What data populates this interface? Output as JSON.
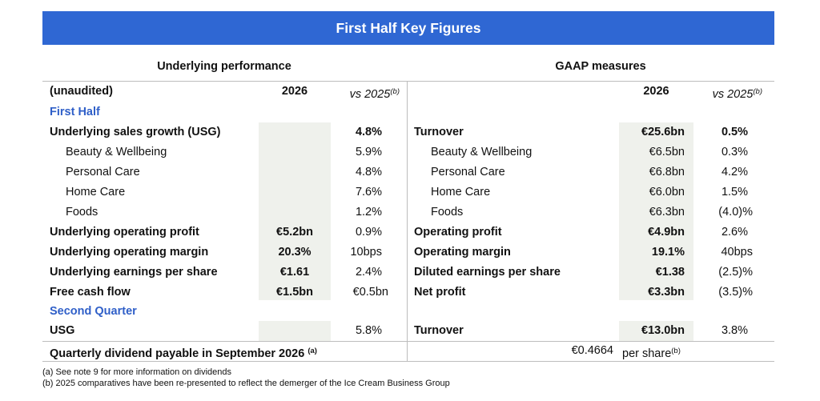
{
  "banner": "First Half Key Figures",
  "underlying": {
    "title": "Underlying performance",
    "col_label": "(unaudited)",
    "col_year": "2026",
    "col_vs": "vs 2025",
    "col_vs_sup": "(b)",
    "first_half": "First Half",
    "second_quarter": "Second Quarter",
    "rows": [
      {
        "label": "Underlying sales growth (USG)",
        "value": "",
        "change": "4.8%"
      },
      {
        "label": "Beauty & Wellbeing",
        "value": "",
        "change": "5.9%"
      },
      {
        "label": "Personal Care",
        "value": "",
        "change": "4.8%"
      },
      {
        "label": "Home Care",
        "value": "",
        "change": "7.6%"
      },
      {
        "label": "Foods",
        "value": "",
        "change": "1.2%"
      },
      {
        "label": "Underlying operating profit",
        "value": "€5.2bn",
        "change": "0.9%"
      },
      {
        "label": "Underlying operating margin",
        "value": "20.3%",
        "change": "10bps"
      },
      {
        "label": "Underlying earnings per share",
        "value": "€1.61",
        "change": "2.4%"
      },
      {
        "label": "Free cash flow",
        "value": "€1.5bn",
        "change": "€0.5bn"
      }
    ],
    "q2_row": {
      "label": "USG",
      "value": "",
      "change": "5.8%"
    }
  },
  "gaap": {
    "title": "GAAP measures",
    "col_year": "2026",
    "col_vs": "vs 2025",
    "col_vs_sup": "(b)",
    "rows": [
      {
        "label": "Turnover",
        "value": "€25.6bn",
        "change": "0.5%"
      },
      {
        "label": "Beauty & Wellbeing",
        "value": "€6.5bn",
        "change": "0.3%"
      },
      {
        "label": "Personal Care",
        "value": "€6.8bn",
        "change": "4.2%"
      },
      {
        "label": "Home Care",
        "value": "€6.0bn",
        "change": "1.5%"
      },
      {
        "label": "Foods",
        "value": "€6.3bn",
        "change": "(4.0)%"
      },
      {
        "label": "Operating profit",
        "value": "€4.9bn",
        "change": "2.6%"
      },
      {
        "label": "Operating margin",
        "value": "19.1%",
        "change": "40bps"
      },
      {
        "label": "Diluted earnings per share",
        "value": "€1.38",
        "change": "(2.5)%"
      },
      {
        "label": "Net profit",
        "value": "€3.3bn",
        "change": "(3.5)%"
      }
    ],
    "q2_row": {
      "label": "Turnover",
      "value": "€13.0bn",
      "change": "3.8%"
    }
  },
  "dividend": {
    "label": "Quarterly dividend payable in September 2026",
    "label_sup": "(a)",
    "amount": "€0.4664",
    "unit": "per share",
    "unit_sup": "(b)"
  },
  "footnotes": [
    "(a)  See note 9 for more information on dividends",
    "(b)  2025 comparatives have been re-presented to reflect the demerger of the Ice Cream Business Group"
  ]
}
